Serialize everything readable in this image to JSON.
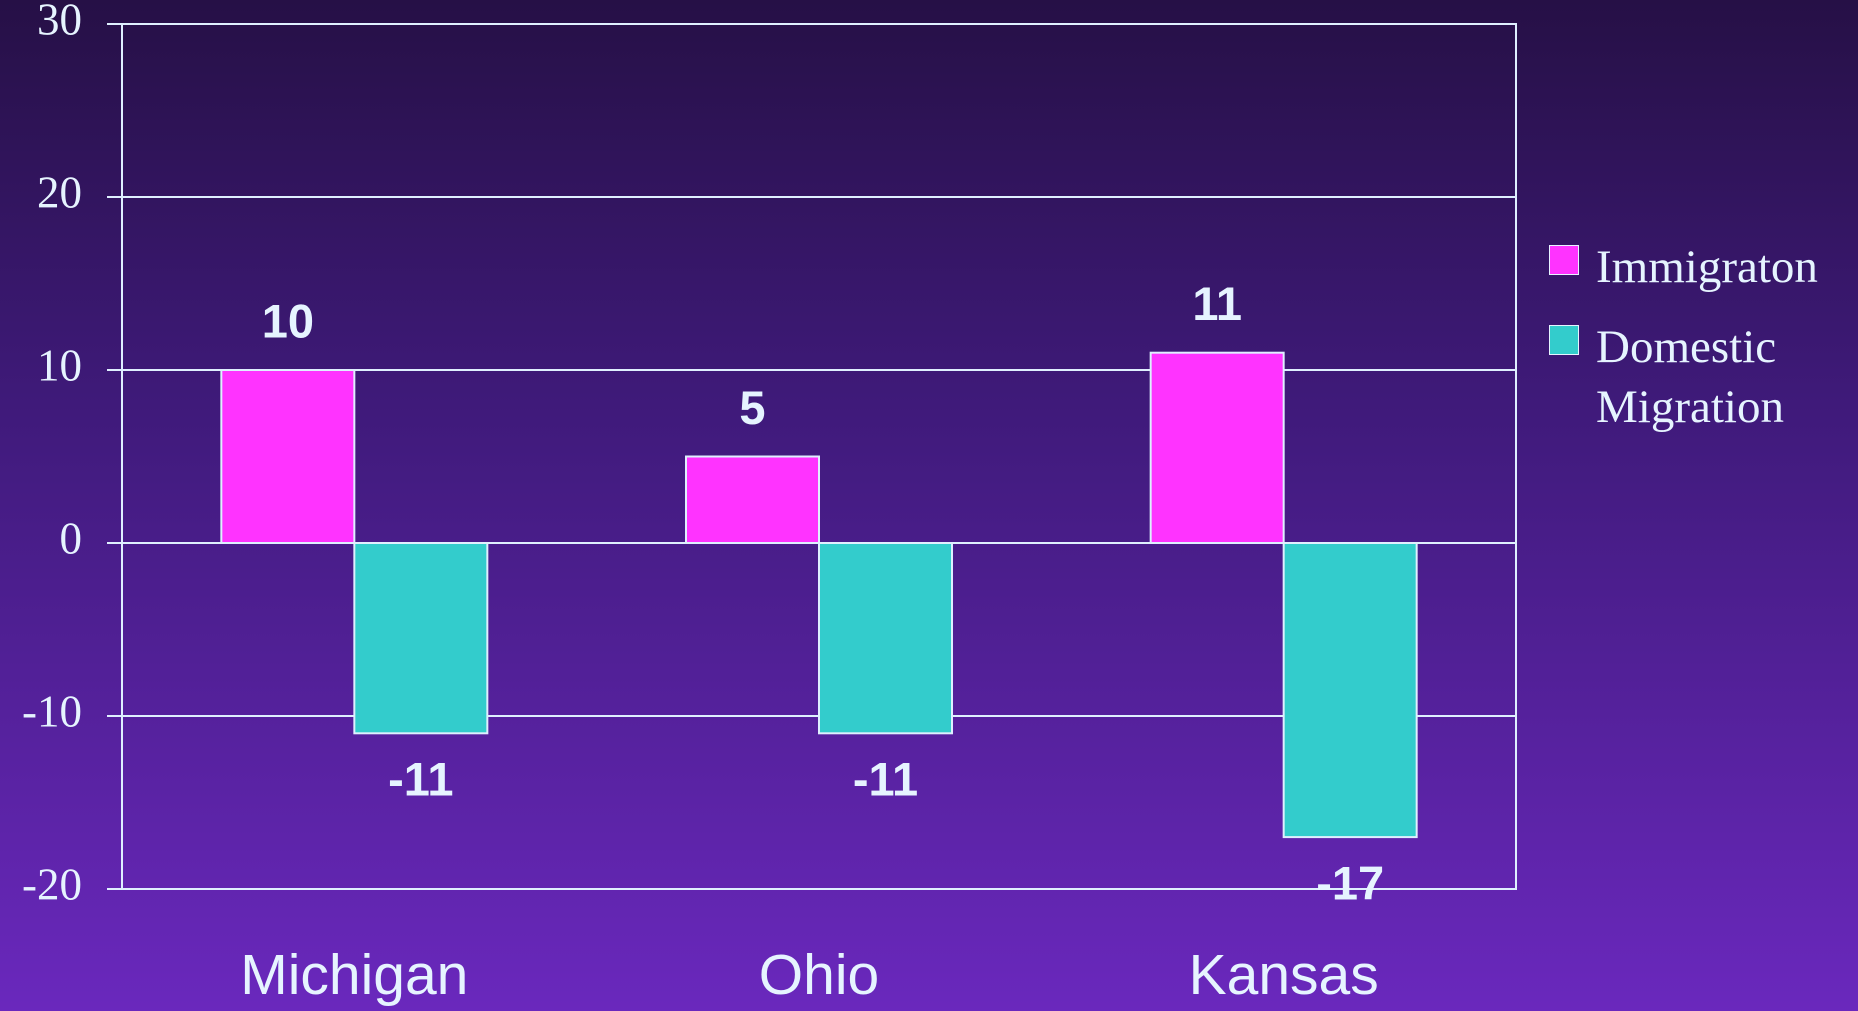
{
  "chart_data": {
    "type": "bar",
    "categories": [
      "Michigan",
      "Ohio",
      "Kansas"
    ],
    "series": [
      {
        "name": "Immigraton",
        "color": "#ff33ff",
        "values": [
          10,
          5,
          11
        ]
      },
      {
        "name": "Domestic Migration",
        "color": "#33cccc",
        "values": [
          -11,
          -11,
          -17
        ]
      }
    ],
    "ylim": [
      -20,
      30
    ],
    "yticks": [
      -20,
      -10,
      0,
      10,
      20,
      30
    ],
    "grid": true,
    "legend": "right"
  }
}
